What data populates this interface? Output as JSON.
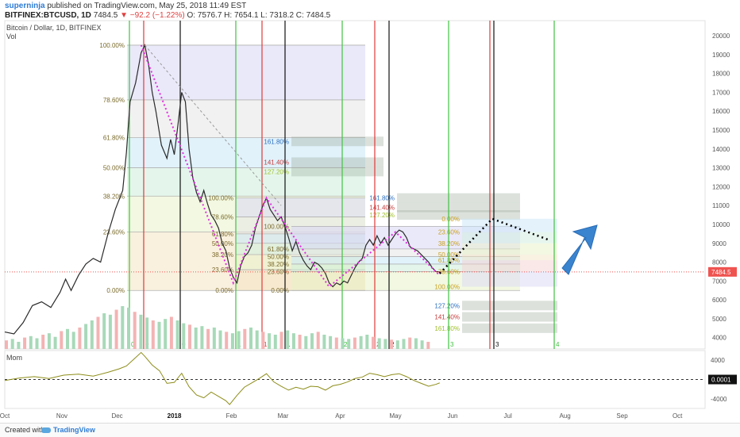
{
  "header": {
    "user": "superninja",
    "published": "published on TradingView.com, May 25, 2018 11:49 EST",
    "symbol": "BITFINEX:BTCUSD, 1D",
    "price": "7484.5",
    "change_arrow": "▼",
    "change": "−92.2 (−1.22%)",
    "ohlc": "O: 7576.7  H: 7654.1  L: 7318.2  C: 7484.5"
  },
  "legend": {
    "title": "Bitcoin / Dollar, 1D, BITFINEX",
    "vol": "Vol",
    "mom": "Mom"
  },
  "footer": {
    "created_with": "Created with",
    "brand": "TradingView",
    "icon": "tradingview-cloud-icon"
  },
  "chart_data": {
    "type": "line",
    "price_axis": {
      "ylim": [
        3400,
        20800
      ],
      "ticks": [
        4000,
        5000,
        6000,
        7000,
        8000,
        9000,
        10000,
        11000,
        12000,
        13000,
        14000,
        15000,
        16000,
        17000,
        18000,
        19000,
        20000
      ],
      "last_price": "7484.5",
      "last_price_color": "#ef5350"
    },
    "mom_axis": {
      "ylim": [
        -6000,
        6000
      ],
      "ticks": [
        4000,
        -4000
      ],
      "current": "0.0001"
    },
    "x_axis": {
      "tick_labels": [
        {
          "label": "Oct",
          "x": 0
        },
        {
          "label": "Nov",
          "x": 31
        },
        {
          "label": "Dec",
          "x": 61
        },
        {
          "label": "2018",
          "x": 92
        },
        {
          "label": "Feb",
          "x": 123
        },
        {
          "label": "Mar",
          "x": 151
        },
        {
          "label": "Apr",
          "x": 182
        },
        {
          "label": "May",
          "x": 212
        },
        {
          "label": "Jun",
          "x": 243
        },
        {
          "label": "Jul",
          "x": 273
        },
        {
          "label": "Aug",
          "x": 304
        },
        {
          "label": "Sep",
          "x": 335
        },
        {
          "label": "Oct",
          "x": 365
        }
      ]
    },
    "price_series": [
      [
        0,
        4300
      ],
      [
        5,
        4200
      ],
      [
        10,
        4800
      ],
      [
        15,
        5700
      ],
      [
        20,
        5900
      ],
      [
        25,
        5600
      ],
      [
        30,
        6400
      ],
      [
        33,
        7100
      ],
      [
        36,
        6500
      ],
      [
        40,
        7300
      ],
      [
        44,
        7900
      ],
      [
        48,
        8200
      ],
      [
        52,
        8000
      ],
      [
        56,
        9500
      ],
      [
        60,
        10800
      ],
      [
        64,
        11800
      ],
      [
        66,
        13800
      ],
      [
        68,
        16500
      ],
      [
        71,
        17500
      ],
      [
        74,
        19100
      ],
      [
        76,
        19500
      ],
      [
        78,
        18500
      ],
      [
        80,
        17000
      ],
      [
        82,
        16000
      ],
      [
        85,
        14200
      ],
      [
        88,
        13500
      ],
      [
        90,
        14500
      ],
      [
        92,
        13700
      ],
      [
        94,
        15300
      ],
      [
        96,
        17000
      ],
      [
        98,
        16500
      ],
      [
        100,
        14000
      ],
      [
        102,
        12500
      ],
      [
        104,
        11700
      ],
      [
        106,
        11200
      ],
      [
        108,
        11800
      ],
      [
        110,
        11100
      ],
      [
        112,
        10500
      ],
      [
        114,
        10200
      ],
      [
        116,
        9800
      ],
      [
        118,
        9000
      ],
      [
        120,
        8600
      ],
      [
        122,
        7700
      ],
      [
        124,
        7200
      ],
      [
        126,
        6900
      ],
      [
        128,
        7800
      ],
      [
        130,
        8300
      ],
      [
        132,
        8500
      ],
      [
        134,
        8900
      ],
      [
        136,
        9800
      ],
      [
        138,
        10400
      ],
      [
        140,
        11000
      ],
      [
        142,
        11400
      ],
      [
        144,
        10800
      ],
      [
        146,
        10500
      ],
      [
        148,
        10200
      ],
      [
        150,
        10400
      ],
      [
        152,
        9900
      ],
      [
        154,
        9300
      ],
      [
        156,
        8600
      ],
      [
        158,
        9100
      ],
      [
        160,
        8500
      ],
      [
        162,
        8100
      ],
      [
        164,
        7800
      ],
      [
        166,
        7600
      ],
      [
        168,
        8000
      ],
      [
        170,
        7900
      ],
      [
        172,
        7700
      ],
      [
        174,
        7400
      ],
      [
        176,
        6900
      ],
      [
        178,
        6700
      ],
      [
        180,
        6900
      ],
      [
        182,
        6800
      ],
      [
        184,
        7000
      ],
      [
        186,
        6900
      ],
      [
        188,
        7300
      ],
      [
        190,
        7700
      ],
      [
        192,
        8000
      ],
      [
        194,
        8200
      ],
      [
        196,
        8900
      ],
      [
        198,
        9200
      ],
      [
        200,
        8900
      ],
      [
        202,
        9400
      ],
      [
        204,
        9000
      ],
      [
        206,
        9300
      ],
      [
        208,
        8900
      ],
      [
        210,
        9200
      ],
      [
        212,
        9500
      ],
      [
        214,
        9700
      ],
      [
        216,
        9600
      ],
      [
        218,
        9300
      ],
      [
        220,
        8800
      ],
      [
        222,
        8700
      ],
      [
        224,
        8600
      ],
      [
        226,
        8400
      ],
      [
        228,
        8200
      ],
      [
        230,
        8000
      ],
      [
        232,
        7700
      ],
      [
        234,
        7500
      ],
      [
        236,
        7485
      ]
    ],
    "mom_series": [
      [
        0,
        -200
      ],
      [
        8,
        300
      ],
      [
        16,
        600
      ],
      [
        24,
        200
      ],
      [
        32,
        900
      ],
      [
        40,
        1100
      ],
      [
        48,
        700
      ],
      [
        56,
        1500
      ],
      [
        62,
        2200
      ],
      [
        66,
        2800
      ],
      [
        70,
        4200
      ],
      [
        74,
        5600
      ],
      [
        76,
        4800
      ],
      [
        80,
        3000
      ],
      [
        84,
        1800
      ],
      [
        88,
        -800
      ],
      [
        92,
        -600
      ],
      [
        96,
        1300
      ],
      [
        100,
        -1500
      ],
      [
        104,
        -3200
      ],
      [
        108,
        -3800
      ],
      [
        112,
        -2600
      ],
      [
        116,
        -3500
      ],
      [
        120,
        -4400
      ],
      [
        122,
        -5200
      ],
      [
        126,
        -3300
      ],
      [
        130,
        -1600
      ],
      [
        134,
        -700
      ],
      [
        138,
        200
      ],
      [
        142,
        1200
      ],
      [
        146,
        -500
      ],
      [
        150,
        -1400
      ],
      [
        154,
        -2200
      ],
      [
        158,
        -1600
      ],
      [
        162,
        -2000
      ],
      [
        166,
        -1400
      ],
      [
        170,
        -1500
      ],
      [
        174,
        -2200
      ],
      [
        178,
        -1300
      ],
      [
        182,
        -1000
      ],
      [
        186,
        -500
      ],
      [
        190,
        200
      ],
      [
        194,
        500
      ],
      [
        198,
        1300
      ],
      [
        202,
        1000
      ],
      [
        206,
        600
      ],
      [
        210,
        1000
      ],
      [
        214,
        1200
      ],
      [
        218,
        600
      ],
      [
        222,
        -200
      ],
      [
        226,
        -800
      ],
      [
        230,
        -1400
      ],
      [
        234,
        -1000
      ],
      [
        236,
        -700
      ]
    ],
    "volume_bars": [
      12,
      14,
      10,
      16,
      18,
      15,
      20,
      22,
      17,
      25,
      28,
      24,
      30,
      35,
      40,
      45,
      50,
      48,
      55,
      60,
      58,
      52,
      48,
      44,
      40,
      38,
      42,
      45,
      40,
      36,
      34,
      30,
      32,
      28,
      30,
      26,
      24,
      22,
      25,
      28,
      30,
      26,
      24,
      22,
      20,
      24,
      26,
      22,
      20,
      18,
      22,
      24,
      20,
      18,
      16,
      15,
      14,
      16,
      18,
      20,
      17,
      15,
      14,
      13,
      12,
      14,
      16,
      15,
      12,
      10
    ],
    "fib_retracements": [
      {
        "y0": 19500,
        "y1": 6500,
        "levels": [
          [
            "100.00%",
            19500
          ],
          [
            "78.60%",
            16600
          ],
          [
            "61.80%",
            14600
          ],
          [
            "50.00%",
            13000
          ],
          [
            "38.20%",
            11500
          ],
          [
            "23.60%",
            9600
          ],
          [
            "0.00%",
            6500
          ]
        ]
      },
      {
        "y0": 11400,
        "y1": 6500,
        "levels": [
          [
            "100.00%",
            11400
          ],
          [
            "78.60%",
            10400
          ],
          [
            "61.80%",
            9500
          ],
          [
            "50.00%",
            9000
          ],
          [
            "38.20%",
            8400
          ],
          [
            "23.60%",
            7600
          ],
          [
            "0.00%",
            6500
          ]
        ]
      },
      {
        "y0": 9900,
        "y1": 6500,
        "levels": [
          [
            "100.00%",
            9900
          ],
          [
            "61.80%",
            8700
          ],
          [
            "50.00%",
            8300
          ],
          [
            "38.20%",
            7900
          ],
          [
            "23.60%",
            7500
          ],
          [
            "0.00%",
            6500
          ]
        ]
      }
    ],
    "fib_extensions": [
      {
        "levels": [
          [
            "161.80%",
            14400
          ],
          [
            "141.40%",
            13300
          ],
          [
            "127.20%",
            12800
          ]
        ]
      },
      {
        "levels": [
          [
            "161.80%",
            11400
          ],
          [
            "141.40%",
            10900
          ],
          [
            "127.20%",
            10500
          ]
        ]
      },
      {
        "levels": [
          [
            "127.20%",
            5700
          ],
          [
            "141.40%",
            5100
          ],
          [
            "161.80%",
            4500
          ]
        ]
      }
    ],
    "projection_levels": [
      [
        "0.00%",
        10300
      ],
      [
        "23.60%",
        9600
      ],
      [
        "38.20%",
        9000
      ],
      [
        "50.00%",
        8400
      ],
      [
        "61.80%",
        8100
      ],
      [
        "78.60%",
        7500
      ],
      [
        "100.00%",
        6700
      ]
    ],
    "cycle_labels": [
      "0",
      "0",
      "0",
      "1",
      "1",
      "1",
      "2",
      "2",
      "2",
      "3",
      "3",
      "4"
    ],
    "arrow_color": "#3a83cf"
  }
}
